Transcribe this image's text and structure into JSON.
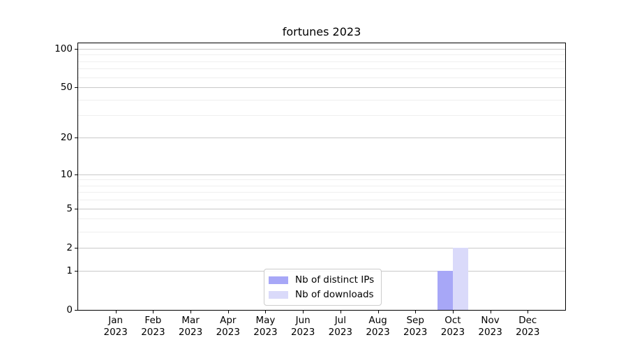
{
  "figure": {
    "background": "#ffffff"
  },
  "chart_data": {
    "type": "bar",
    "title": "fortunes 2023",
    "xlabel": "",
    "ylabel": "",
    "scale": "log1p",
    "ylim": [
      0,
      110
    ],
    "grid": "both",
    "categories": [
      {
        "month": "Jan",
        "year": "2023"
      },
      {
        "month": "Feb",
        "year": "2023"
      },
      {
        "month": "Mar",
        "year": "2023"
      },
      {
        "month": "Apr",
        "year": "2023"
      },
      {
        "month": "May",
        "year": "2023"
      },
      {
        "month": "Jun",
        "year": "2023"
      },
      {
        "month": "Jul",
        "year": "2023"
      },
      {
        "month": "Aug",
        "year": "2023"
      },
      {
        "month": "Sep",
        "year": "2023"
      },
      {
        "month": "Oct",
        "year": "2023"
      },
      {
        "month": "Nov",
        "year": "2023"
      },
      {
        "month": "Dec",
        "year": "2023"
      }
    ],
    "series": [
      {
        "name": "Nb of distinct IPs",
        "color": "#a7a7f7",
        "values": [
          0,
          0,
          0,
          0,
          0,
          0,
          0,
          0,
          0,
          1,
          0,
          0
        ]
      },
      {
        "name": "Nb of downloads",
        "color": "#dadafa",
        "values": [
          0,
          0,
          0,
          0,
          0,
          0,
          0,
          0,
          0,
          2,
          0,
          0
        ]
      }
    ],
    "yticks_major": [
      0,
      1,
      2,
      5,
      10,
      20,
      50,
      100
    ],
    "yticks_minor": [
      3,
      4,
      6,
      7,
      8,
      9,
      30,
      40,
      60,
      70,
      80,
      90
    ],
    "legend": {
      "position": "lower center",
      "border_color": "#cccccc",
      "background": "#ffffff"
    },
    "colors": {
      "spine": "#000000",
      "grid_major": "#c9c9c9",
      "grid_minor": "#efefef",
      "text": "#000000"
    }
  }
}
